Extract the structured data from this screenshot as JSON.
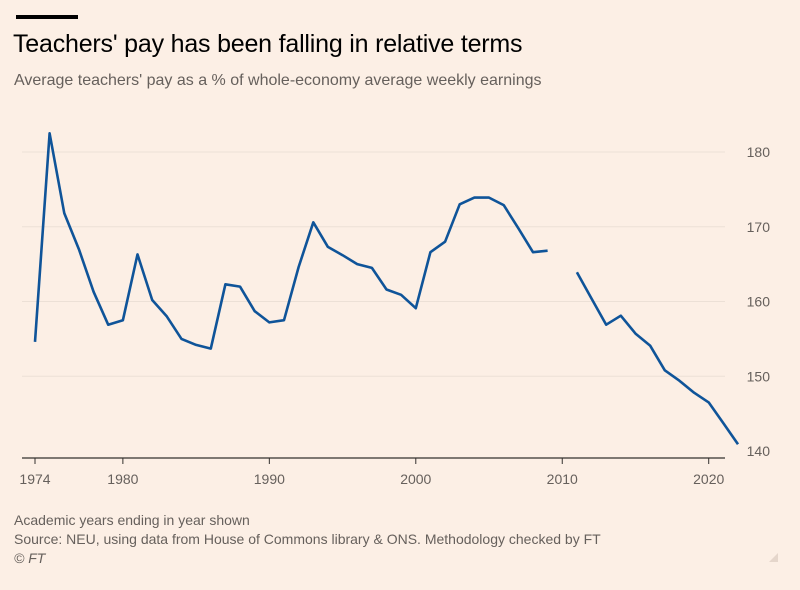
{
  "header": {
    "title": "Teachers' pay has been falling in relative terms",
    "subtitle": "Average teachers' pay as a % of whole-economy average weekly earnings"
  },
  "footer": {
    "note": "Academic years ending in year shown",
    "source": "Source: NEU, using data from House of Commons library & ONS. Methodology checked by FT",
    "copyright": "© FT"
  },
  "colors": {
    "background": "#fcefe5",
    "line": "#0f5499",
    "grid": "#ece0d6",
    "axis": "#33302e",
    "text": "#66605c"
  },
  "chart_data": {
    "type": "line",
    "title": "Teachers' pay has been falling in relative terms",
    "subtitle": "Average teachers' pay as a % of whole-economy average weekly earnings",
    "xlim": [
      1974,
      2022
    ],
    "ylim": [
      140,
      182
    ],
    "x_ticks": [
      1974,
      1980,
      1990,
      2000,
      2010,
      2020
    ],
    "y_ticks": [
      140,
      150,
      160,
      170,
      180
    ],
    "y_axis_side": "right",
    "grid": "horizontal",
    "series": [
      {
        "segments": [
          [
            [
              1974,
              154.6
            ],
            [
              1975,
              182.5
            ],
            [
              1976,
              171.8
            ],
            [
              1977,
              167.0
            ],
            [
              1978,
              161.3
            ],
            [
              1979,
              156.9
            ],
            [
              1980,
              157.5
            ],
            [
              1981,
              166.3
            ],
            [
              1982,
              160.2
            ],
            [
              1983,
              158.0
            ],
            [
              1984,
              155.0
            ],
            [
              1985,
              154.2
            ],
            [
              1986,
              153.7
            ],
            [
              1987,
              162.3
            ],
            [
              1988,
              162.0
            ],
            [
              1989,
              158.7
            ],
            [
              1990,
              157.2
            ],
            [
              1991,
              157.5
            ],
            [
              1992,
              164.6
            ],
            [
              1993,
              170.6
            ],
            [
              1994,
              167.3
            ],
            [
              1995,
              166.2
            ],
            [
              1996,
              165.0
            ],
            [
              1997,
              164.5
            ],
            [
              1998,
              161.6
            ],
            [
              1999,
              160.9
            ],
            [
              2000,
              159.1
            ],
            [
              2001,
              166.6
            ],
            [
              2002,
              168.0
            ],
            [
              2003,
              173.0
            ],
            [
              2004,
              173.9
            ],
            [
              2005,
              173.9
            ],
            [
              2006,
              172.9
            ],
            [
              2007,
              169.8
            ],
            [
              2008,
              166.6
            ],
            [
              2009,
              166.8
            ]
          ],
          [
            [
              2011,
              163.9
            ],
            [
              2012,
              160.4
            ],
            [
              2013,
              156.9
            ],
            [
              2014,
              158.1
            ],
            [
              2015,
              155.7
            ],
            [
              2016,
              154.1
            ],
            [
              2017,
              150.8
            ],
            [
              2018,
              149.4
            ],
            [
              2019,
              147.8
            ],
            [
              2020,
              146.5
            ],
            [
              2021,
              143.7
            ],
            [
              2022,
              140.9
            ]
          ]
        ]
      }
    ]
  }
}
